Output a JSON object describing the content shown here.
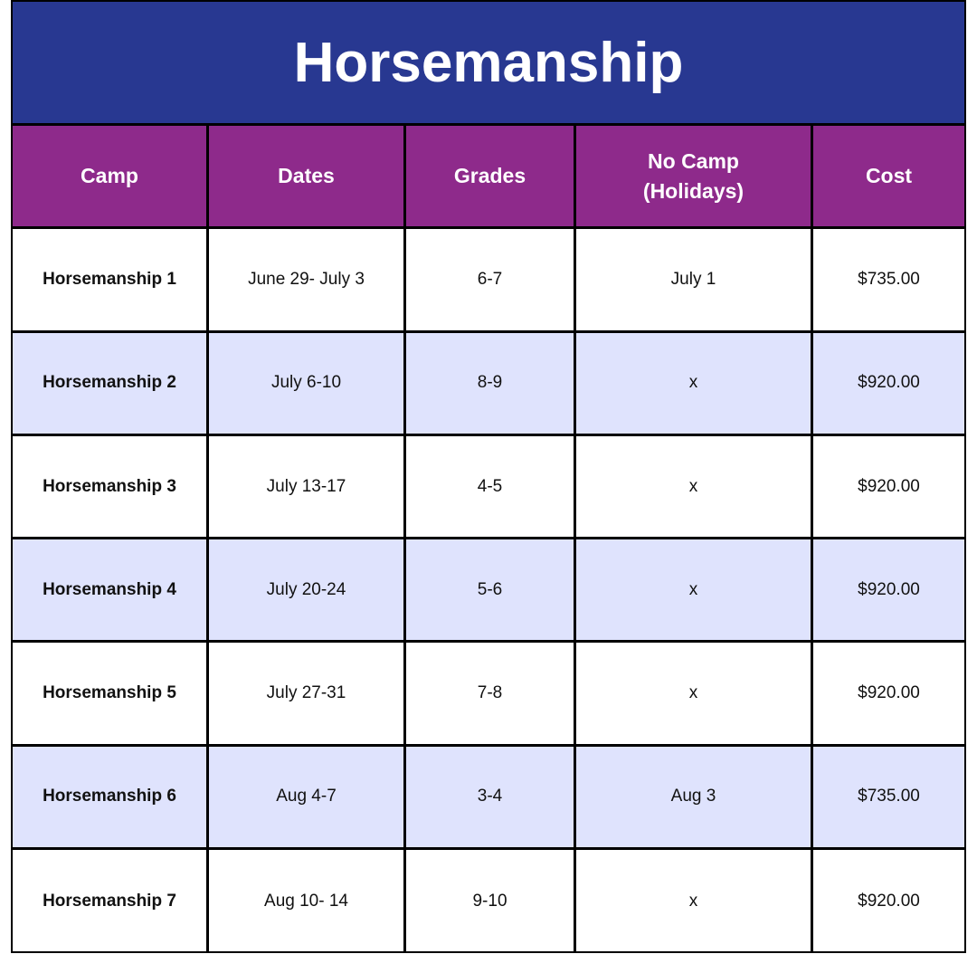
{
  "title": "Horsemanship",
  "columns": [
    "Camp",
    "Dates",
    "Grades",
    "No Camp\n(Holidays)",
    "Cost"
  ],
  "rows": [
    [
      "Horsemanship 1",
      "June 29- July 3",
      "6-7",
      "July 1",
      "$735.00"
    ],
    [
      "Horsemanship 2",
      "July 6-10",
      "8-9",
      "x",
      "$920.00"
    ],
    [
      "Horsemanship 3",
      "July 13-17",
      "4-5",
      "x",
      "$920.00"
    ],
    [
      "Horsemanship 4",
      "July 20-24",
      "5-6",
      "x",
      "$920.00"
    ],
    [
      "Horsemanship 5",
      "July 27-31",
      "7-8",
      "x",
      "$920.00"
    ],
    [
      "Horsemanship 6",
      "Aug 4-7",
      "3-4",
      "Aug 3",
      "$735.00"
    ],
    [
      "Horsemanship 7",
      "Aug 10- 14",
      "9-10",
      "x",
      "$920.00"
    ]
  ],
  "colors": {
    "title_bg": "#283891",
    "header_bg": "#8e2a8b",
    "alt_row_bg": "#dfe3fd"
  }
}
